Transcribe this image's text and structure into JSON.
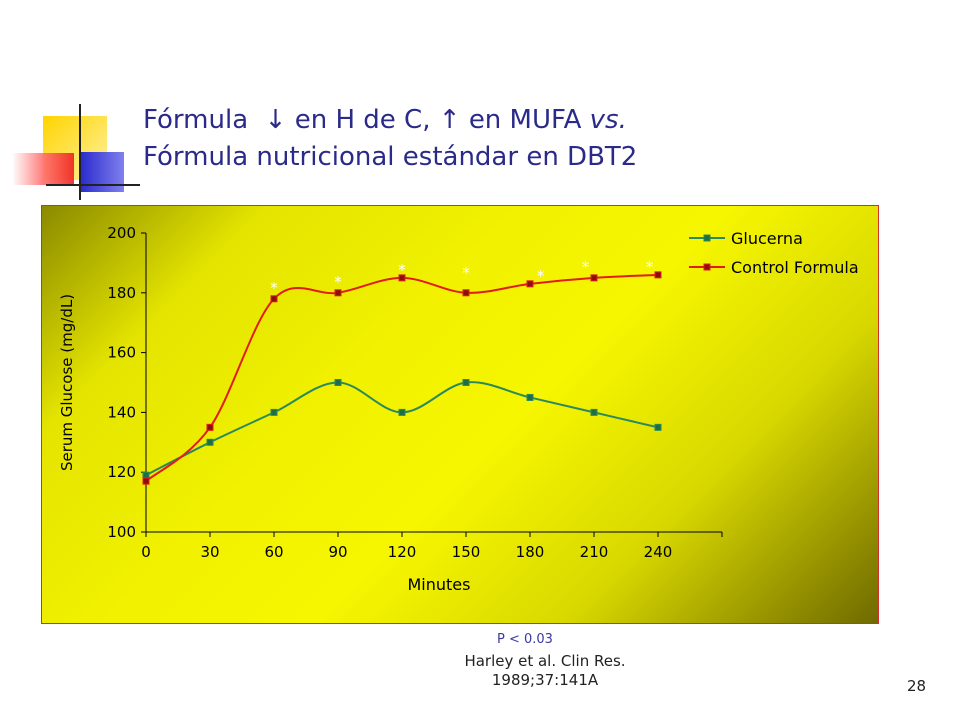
{
  "slide": {
    "title_line1_part1": "Fórmula",
    "title_down_arrow": "↓",
    "title_line1_part2": "en H de C,",
    "title_up_arrow": "↑",
    "title_line1_part3": "en MUFA",
    "title_line1_italic": "vs.",
    "title_line2": "Fórmula nutricional  estándar en DBT2",
    "pvalue": "P < 0.03",
    "citation_line1": "Harley et al. Clin Res.",
    "citation_line2": "1989;37:141A",
    "slide_number": "28",
    "colors": {
      "title": "#2a2a8a",
      "glucerna": "#2a8a5a",
      "control": "#e21b1b",
      "asterisk": "#ffffff"
    }
  },
  "chart_data": {
    "type": "line",
    "title": "",
    "xlabel": "Minutes",
    "ylabel": "Serum Glucose (mg/dL)",
    "x": [
      0,
      30,
      60,
      90,
      120,
      150,
      180,
      210,
      240
    ],
    "xticks": [
      "0",
      "30",
      "60",
      "90",
      "120",
      "150",
      "180",
      "210",
      "240"
    ],
    "xlim": [
      0,
      270
    ],
    "ylim": [
      100,
      200
    ],
    "yticks": [
      "100",
      "120",
      "140",
      "160",
      "180",
      "200"
    ],
    "grid": false,
    "legend_position": "top-right",
    "series": [
      {
        "name": "Glucerna",
        "color": "#2a8a5a",
        "values": [
          119,
          130,
          140,
          150,
          140,
          150,
          145,
          140,
          135
        ]
      },
      {
        "name": "Control Formula",
        "color": "#e21b1b",
        "values": [
          117,
          135,
          178,
          180,
          185,
          180,
          183,
          185,
          186
        ]
      }
    ],
    "annotations": [
      {
        "text": "*",
        "x": 60,
        "y": 182
      },
      {
        "text": "*",
        "x": 90,
        "y": 184
      },
      {
        "text": "*",
        "x": 120,
        "y": 188
      },
      {
        "text": "*",
        "x": 150,
        "y": 187
      },
      {
        "text": "*",
        "x": 185,
        "y": 186
      },
      {
        "text": "*",
        "x": 206,
        "y": 189
      },
      {
        "text": "*",
        "x": 236,
        "y": 189
      }
    ]
  }
}
